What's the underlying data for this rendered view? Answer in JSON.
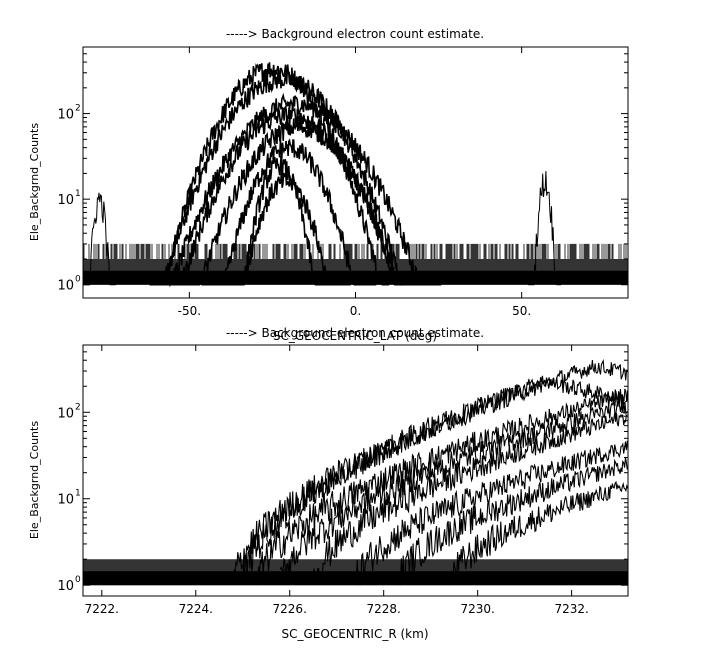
{
  "chart_data": [
    {
      "type": "line",
      "title": "-----> Background electron count estimate.",
      "xlabel": "SC_GEOCENTRIC_LAT (deg)",
      "ylabel": "Ele_Backgrnd_Counts",
      "y_scale": "log",
      "ylim": [
        0.7,
        600
      ],
      "xlim": [
        -82,
        82
      ],
      "x_data_range": [
        -82,
        82
      ],
      "x_ticks": [
        -50,
        0,
        50
      ],
      "x_tick_labels": [
        "-50.",
        "0.",
        "50."
      ],
      "y_ticks": [
        1,
        10,
        100
      ],
      "y_tick_labels": [
        "10",
        "10",
        "10"
      ],
      "y_tick_exponents": [
        "0",
        "1",
        "2"
      ],
      "grid": false,
      "series": [
        {
          "center": -25,
          "width": 16,
          "peak": 330
        },
        {
          "center": -22,
          "width": 18,
          "peak": 250
        },
        {
          "center": -18,
          "width": 20,
          "peak": 130
        },
        {
          "center": -20,
          "width": 18,
          "peak": 95
        },
        {
          "center": -17,
          "width": 17,
          "peak": 70
        },
        {
          "center": -20,
          "width": 12,
          "peak": 40
        },
        {
          "center": -23,
          "width": 7,
          "peak": 25
        },
        {
          "center": -21,
          "width": 9,
          "peak": 16
        }
      ],
      "side_peaks": [
        {
          "center": -77,
          "width": 2,
          "peak": 10
        },
        {
          "center": 57,
          "width": 2,
          "peak": 16
        }
      ],
      "noise_floor": {
        "low": 1,
        "high": 3
      }
    },
    {
      "type": "line",
      "title": "-----> Background electron count estimate.",
      "xlabel": "SC_GEOCENTRIC_R (km)",
      "ylabel": "Ele_Backgrnd_Counts",
      "y_scale": "log",
      "ylim": [
        0.75,
        600
      ],
      "xlim": [
        7221.6,
        7233.2
      ],
      "x_data_range": [
        7221.6,
        7233.2
      ],
      "x_ticks": [
        7222,
        7224,
        7226,
        7228,
        7230,
        7232
      ],
      "x_tick_labels": [
        "7222.",
        "7224.",
        "7226.",
        "7228.",
        "7230.",
        "7232."
      ],
      "y_ticks": [
        1,
        10,
        100
      ],
      "y_tick_labels": [
        "10",
        "10",
        "10"
      ],
      "y_tick_exponents": [
        "0",
        "1",
        "2"
      ],
      "grid": false,
      "series": [
        {
          "start": 7224.8,
          "peak_r": 7232.5,
          "peak": 340
        },
        {
          "start": 7225.0,
          "peak_r": 7231.4,
          "peak": 230
        },
        {
          "start": 7225.3,
          "peak_r": 7233.2,
          "peak": 160
        },
        {
          "start": 7225.8,
          "peak_r": 7233.2,
          "peak": 120
        },
        {
          "start": 7226.5,
          "peak_r": 7233.2,
          "peak": 90
        },
        {
          "start": 7227.4,
          "peak_r": 7233.2,
          "peak": 40
        },
        {
          "start": 7228.3,
          "peak_r": 7233.2,
          "peak": 25
        },
        {
          "start": 7229.4,
          "peak_r": 7233.2,
          "peak": 14
        }
      ],
      "noise_floor": {
        "low": 1,
        "high": 2
      }
    }
  ]
}
